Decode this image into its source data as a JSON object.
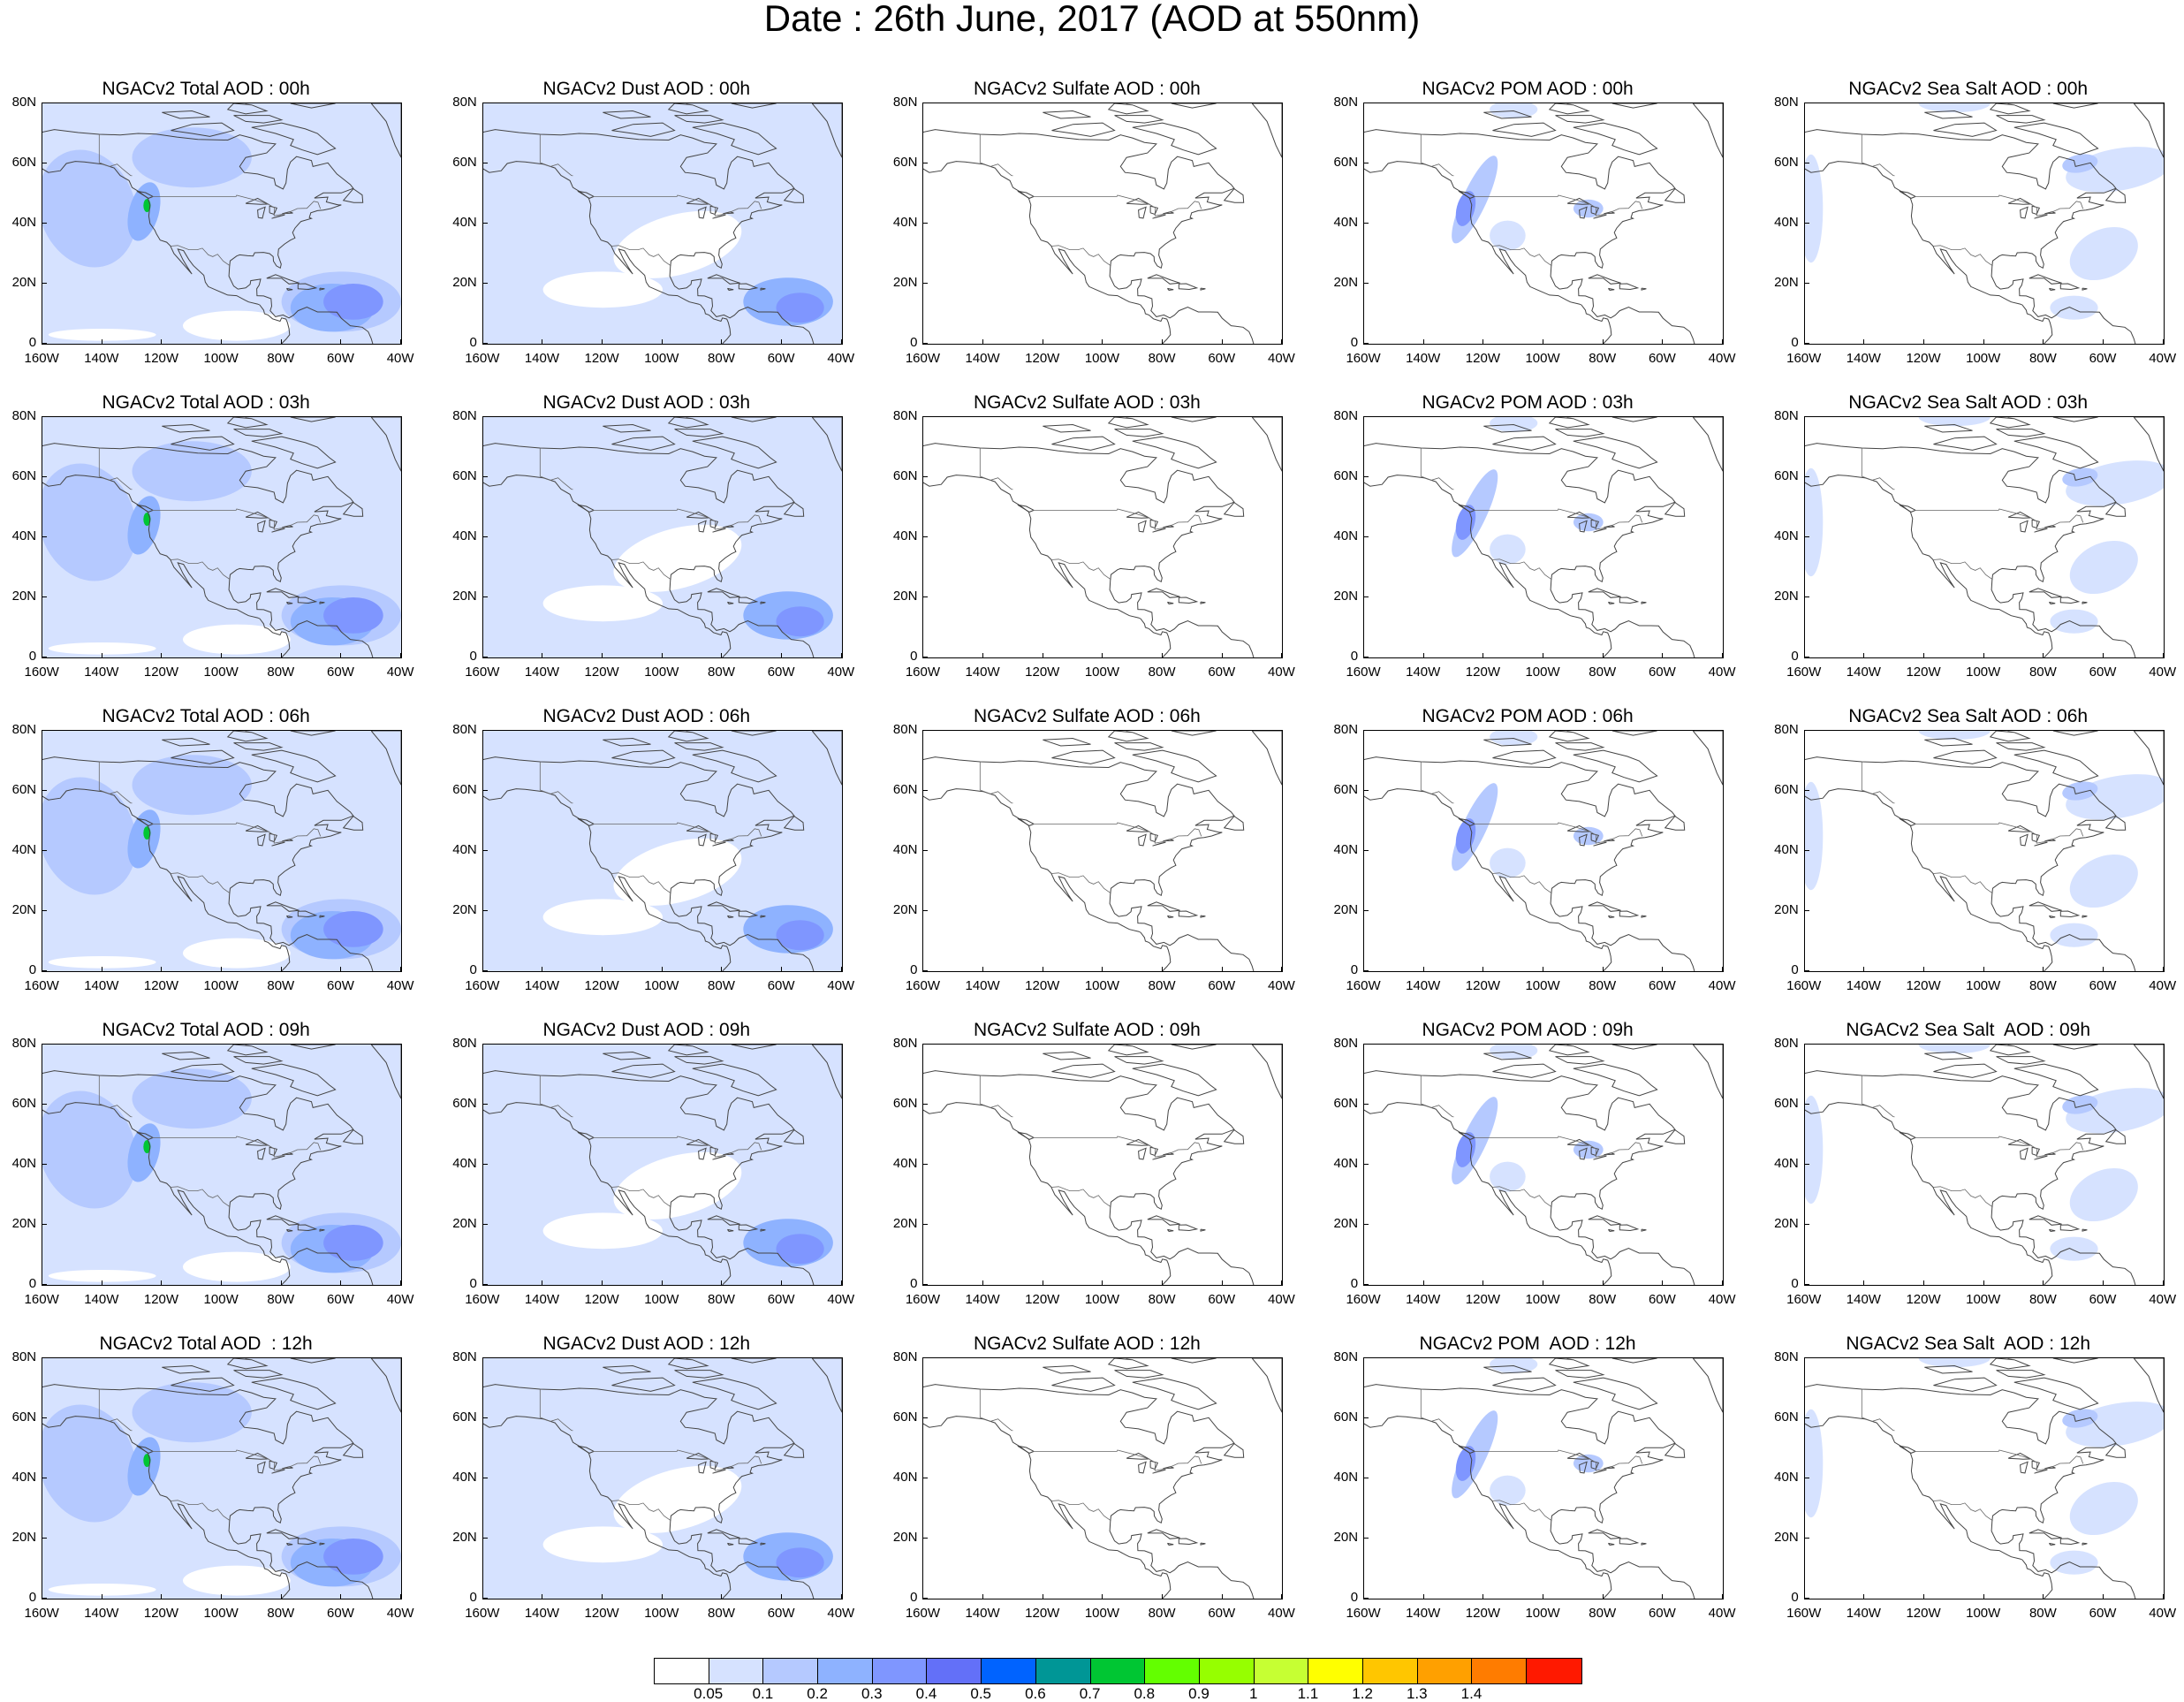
{
  "title": "Date : 26th June, 2017 (AOD at 550nm)",
  "lat_labels": [
    "80N",
    "60N",
    "40N",
    "20N",
    "0"
  ],
  "lon_labels": [
    "160W",
    "140W",
    "120W",
    "100W",
    "80W",
    "60W",
    "40W"
  ],
  "panels": [
    {
      "title": "NGACv2 Total AOD : 00h",
      "species": "total",
      "hour": "00"
    },
    {
      "title": "NGACv2 Dust AOD : 00h",
      "species": "dust",
      "hour": "00"
    },
    {
      "title": "NGACv2 Sulfate AOD : 00h",
      "species": "sulfate",
      "hour": "00"
    },
    {
      "title": "NGACv2 POM AOD : 00h",
      "species": "pom",
      "hour": "00"
    },
    {
      "title": "NGACv2 Sea Salt AOD : 00h",
      "species": "seasalt",
      "hour": "00"
    },
    {
      "title": "NGACv2 Total AOD : 03h",
      "species": "total",
      "hour": "03"
    },
    {
      "title": "NGACv2 Dust AOD : 03h",
      "species": "dust",
      "hour": "03"
    },
    {
      "title": "NGACv2 Sulfate AOD : 03h",
      "species": "sulfate",
      "hour": "03"
    },
    {
      "title": "NGACv2 POM AOD : 03h",
      "species": "pom",
      "hour": "03"
    },
    {
      "title": "NGACv2 Sea Salt AOD : 03h",
      "species": "seasalt",
      "hour": "03"
    },
    {
      "title": "NGACv2 Total AOD : 06h",
      "species": "total",
      "hour": "06"
    },
    {
      "title": "NGACv2 Dust AOD : 06h",
      "species": "dust",
      "hour": "06"
    },
    {
      "title": "NGACv2 Sulfate AOD : 06h",
      "species": "sulfate",
      "hour": "06"
    },
    {
      "title": "NGACv2 POM AOD : 06h",
      "species": "pom",
      "hour": "06"
    },
    {
      "title": "NGACv2 Sea Salt AOD : 06h",
      "species": "seasalt",
      "hour": "06"
    },
    {
      "title": "NGACv2 Total AOD : 09h",
      "species": "total",
      "hour": "09"
    },
    {
      "title": "NGACv2 Dust AOD : 09h",
      "species": "dust",
      "hour": "09"
    },
    {
      "title": "NGACv2 Sulfate AOD : 09h",
      "species": "sulfate",
      "hour": "09"
    },
    {
      "title": "NGACv2 POM AOD : 09h",
      "species": "pom",
      "hour": "09"
    },
    {
      "title": "NGACv2 Sea Salt  AOD : 09h",
      "species": "seasalt",
      "hour": "09"
    },
    {
      "title": "NGACv2 Total AOD  : 12h",
      "species": "total",
      "hour": "12"
    },
    {
      "title": "NGACv2 Dust AOD : 12h",
      "species": "dust",
      "hour": "12"
    },
    {
      "title": "NGACv2 Sulfate AOD : 12h",
      "species": "sulfate",
      "hour": "12"
    },
    {
      "title": "NGACv2 POM  AOD : 12h",
      "species": "pom",
      "hour": "12"
    },
    {
      "title": "NGACv2 Sea Salt  AOD : 12h",
      "species": "seasalt",
      "hour": "12"
    }
  ],
  "colorbar": {
    "colors": [
      "#ffffff",
      "#d6e2ff",
      "#b5c9ff",
      "#8eb2ff",
      "#7f96ff",
      "#6370f8",
      "#0063ff",
      "#009696",
      "#00c633",
      "#63ff00",
      "#96ff00",
      "#c6ff33",
      "#ffff00",
      "#ffc600",
      "#ffa000",
      "#ff7c00",
      "#ff1900"
    ],
    "labels": [
      "0.05",
      "0.1",
      "0.2",
      "0.3",
      "0.4",
      "0.5",
      "0.6",
      "0.7",
      "0.8",
      "0.9",
      "1",
      "1.1",
      "1.2",
      "1.3",
      "1.4"
    ]
  }
}
